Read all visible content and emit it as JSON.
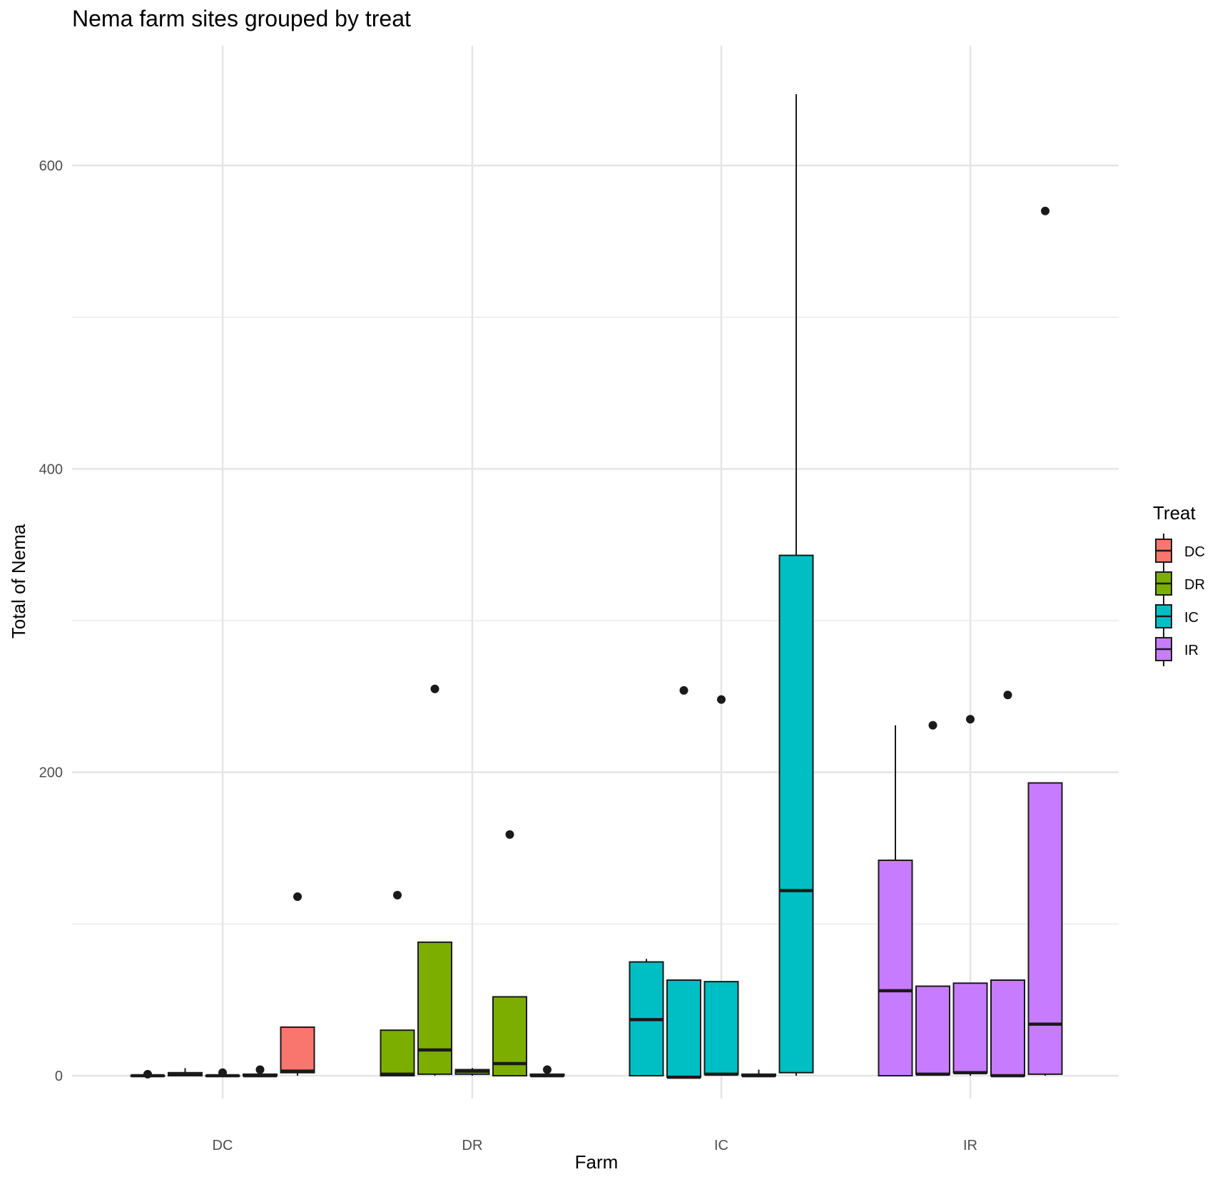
{
  "chart_data": {
    "type": "boxplot",
    "title": "Nema farm sites grouped by treat",
    "xlabel": "Farm",
    "ylabel": "Total of Nema",
    "ylim": [
      -40,
      675
    ],
    "y_ticks": [
      0,
      200,
      400,
      600
    ],
    "categories": [
      "DC",
      "DR",
      "IC",
      "IR"
    ],
    "grid": true,
    "legend": {
      "title": "Treat",
      "position": "right",
      "entries": [
        "DC",
        "DR",
        "IC",
        "IR"
      ]
    },
    "colors": {
      "DC": "#F8766D",
      "DR": "#7CAE00",
      "IC": "#00BFC4",
      "IR": "#C77CFF"
    },
    "groups": [
      {
        "farm": "DC",
        "treat": "DC",
        "boxes": [
          {
            "lower": 0,
            "median": 0,
            "upper": 0,
            "whisker_low": 0,
            "whisker_high": 0,
            "outliers": [
              1
            ]
          },
          {
            "lower": 0,
            "median": 1,
            "upper": 2,
            "whisker_low": 0,
            "whisker_high": 5,
            "outliers": []
          },
          {
            "lower": 0,
            "median": 0,
            "upper": 0,
            "whisker_low": 0,
            "whisker_high": 0,
            "outliers": [
              2
            ]
          },
          {
            "lower": 0,
            "median": 0,
            "upper": 1,
            "whisker_low": 0,
            "whisker_high": 1,
            "outliers": [
              4
            ]
          },
          {
            "lower": 2,
            "median": 3,
            "upper": 32,
            "whisker_low": 0,
            "whisker_high": 32,
            "outliers": [
              118
            ]
          }
        ]
      },
      {
        "farm": "DR",
        "treat": "DR",
        "boxes": [
          {
            "lower": 0,
            "median": 1,
            "upper": 30,
            "whisker_low": 0,
            "whisker_high": 30,
            "outliers": [
              119
            ]
          },
          {
            "lower": 1,
            "median": 17,
            "upper": 88,
            "whisker_low": 0,
            "whisker_high": 88,
            "outliers": [
              255
            ]
          },
          {
            "lower": 1,
            "median": 3,
            "upper": 4,
            "whisker_low": 0,
            "whisker_high": 5,
            "outliers": []
          },
          {
            "lower": 0,
            "median": 8,
            "upper": 52,
            "whisker_low": 0,
            "whisker_high": 52,
            "outliers": [
              159
            ]
          },
          {
            "lower": 0,
            "median": 0,
            "upper": 1,
            "whisker_low": 0,
            "whisker_high": 1,
            "outliers": [
              4
            ]
          }
        ]
      },
      {
        "farm": "IC",
        "treat": "IC",
        "boxes": [
          {
            "lower": 0,
            "median": 37,
            "upper": 75,
            "whisker_low": 0,
            "whisker_high": 77,
            "outliers": []
          },
          {
            "lower": -1,
            "median": -1,
            "upper": 63,
            "whisker_low": -1,
            "whisker_high": 63,
            "outliers": [
              254
            ]
          },
          {
            "lower": 1,
            "median": 1,
            "upper": 62,
            "whisker_low": 0,
            "whisker_high": 62,
            "outliers": [
              248
            ]
          },
          {
            "lower": 0,
            "median": 0,
            "upper": 1,
            "whisker_low": 0,
            "whisker_high": 4,
            "outliers": []
          },
          {
            "lower": 2,
            "median": 122,
            "upper": 343,
            "whisker_low": 0,
            "whisker_high": 647,
            "outliers": []
          }
        ]
      },
      {
        "farm": "IR",
        "treat": "IR",
        "boxes": [
          {
            "lower": 0,
            "median": 56,
            "upper": 142,
            "whisker_low": 0,
            "whisker_high": 231,
            "outliers": []
          },
          {
            "lower": 1,
            "median": 1,
            "upper": 59,
            "whisker_low": 0,
            "whisker_high": 59,
            "outliers": [
              231
            ]
          },
          {
            "lower": 2,
            "median": 2,
            "upper": 61,
            "whisker_low": 0,
            "whisker_high": 61,
            "outliers": [
              235
            ]
          },
          {
            "lower": 0,
            "median": 0,
            "upper": 63,
            "whisker_low": -1,
            "whisker_high": 63,
            "outliers": [
              251
            ]
          },
          {
            "lower": 1,
            "median": 34,
            "upper": 193,
            "whisker_low": 0,
            "whisker_high": 193,
            "outliers": [
              570
            ]
          }
        ]
      }
    ]
  }
}
